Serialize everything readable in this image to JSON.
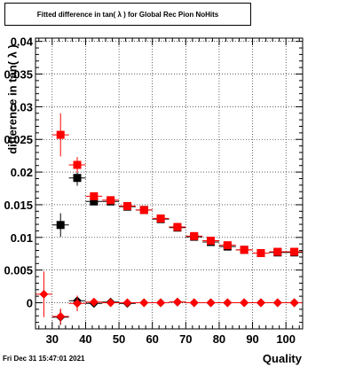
{
  "header": {
    "title": "Fitted difference in tan( λ ) for Global Rec Pion NoHits",
    "datestamp": "Fri Dec 31 15:47:01 2021"
  },
  "chart_data": {
    "type": "scatter",
    "title": "Fitted difference in tan( λ ) for Global Rec Pion NoHits",
    "xlabel": "Quality",
    "ylabel": "difference in tan( λ )",
    "xlim": [
      25,
      105
    ],
    "ylim": [
      -0.004,
      0.0405
    ],
    "x_ticks": [
      30,
      40,
      50,
      60,
      70,
      80,
      90,
      100
    ],
    "y_ticks": [
      0,
      0.005,
      0.01,
      0.015,
      0.02,
      0.025,
      0.03,
      0.035,
      0.04
    ],
    "y_tick_labels": [
      "0",
      "0.005",
      "0.01",
      "0.015",
      "0.02",
      "0.025",
      "0.03",
      "0.035",
      "0.04"
    ],
    "grid": true,
    "series": [
      {
        "marker": "square",
        "color": "#000000",
        "x": [
          32.5,
          37.5,
          42.5,
          47.5,
          52.5,
          57.5,
          62.5,
          67.5,
          72.5,
          77.5,
          82.5,
          87.5,
          92.5,
          97.5,
          102.5
        ],
        "y": [
          0.0119,
          0.0191,
          0.0155,
          0.0155,
          0.0147,
          0.0142,
          0.0128,
          0.0115,
          0.0101,
          0.0093,
          0.0086,
          0.0081,
          0.0076,
          0.0077,
          0.0077
        ],
        "yerr": [
          0.0018,
          0.0012,
          0.0005,
          0.0004,
          0.0003,
          0.0003,
          0.0003,
          0.0003,
          0.0003,
          0.0003,
          0.0003,
          0.0003,
          0.0003,
          0.0003,
          0.0003
        ]
      },
      {
        "marker": "square",
        "color": "#ff0000",
        "x": [
          32.5,
          37.5,
          42.5,
          47.5,
          52.5,
          57.5,
          62.5,
          67.5,
          72.5,
          77.5,
          82.5,
          87.5,
          92.5,
          97.5,
          102.5
        ],
        "y": [
          0.0257,
          0.0211,
          0.0163,
          0.0157,
          0.0148,
          0.0142,
          0.0129,
          0.0116,
          0.0102,
          0.0095,
          0.0088,
          0.0081,
          0.0076,
          0.0078,
          0.0078
        ],
        "yerr": [
          0.0033,
          0.0012,
          0.0005,
          0.0004,
          0.0003,
          0.0003,
          0.0003,
          0.0003,
          0.0003,
          0.0003,
          0.0003,
          0.0003,
          0.0003,
          0.0003,
          0.0003
        ]
      },
      {
        "marker": "diamond",
        "color": "#000000",
        "x": [
          32.5,
          37.5,
          42.5,
          47.5,
          52.5,
          57.5,
          62.5,
          67.5,
          72.5,
          77.5,
          82.5,
          87.5,
          92.5,
          97.5,
          102.5
        ],
        "y": [
          -0.0022,
          0.0003,
          -0.0001,
          0.0001,
          -0.0001,
          0.0,
          0.0,
          0.0001,
          0.0,
          0.0,
          0.0,
          0.0,
          0.0,
          0.0,
          0.0
        ],
        "yerr": [
          0.0012,
          0.0006,
          0.0003,
          0.0002,
          0.0002,
          0.0001,
          0.0001,
          0.0001,
          0.0001,
          0.0001,
          0.0001,
          0.0001,
          0.0001,
          0.0001,
          0.0001
        ]
      },
      {
        "marker": "diamond",
        "color": "#ff0000",
        "x": [
          27.5,
          32.5,
          37.5,
          42.5,
          47.5,
          52.5,
          57.5,
          62.5,
          67.5,
          72.5,
          77.5,
          82.5,
          87.5,
          92.5,
          97.5,
          102.5
        ],
        "y": [
          0.0013,
          -0.0021,
          -0.0001,
          0.0001,
          0.0,
          0.0,
          0.0,
          0.0,
          0.0001,
          0.0,
          0.0,
          0.0,
          0.0,
          0.0,
          0.0,
          0.0
        ],
        "yerr": [
          0.0035,
          0.0012,
          0.0012,
          0.0003,
          0.0002,
          0.0002,
          0.0001,
          0.0001,
          0.0001,
          0.0001,
          0.0001,
          0.0001,
          0.0001,
          0.0001,
          0.0001,
          0.0001
        ]
      }
    ]
  }
}
